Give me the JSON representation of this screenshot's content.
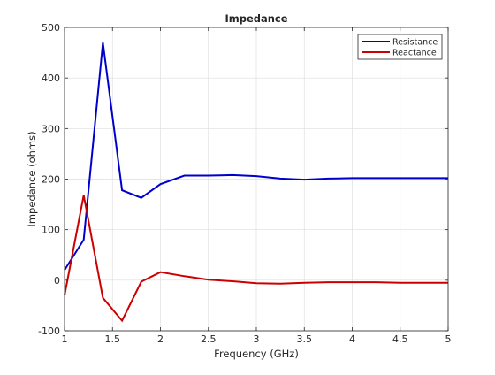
{
  "chart_data": {
    "type": "line",
    "title": "Impedance",
    "xlabel": "Frequency (GHz)",
    "ylabel": "Impedance (ohms)",
    "xlim": [
      1,
      5
    ],
    "ylim": [
      -100,
      500
    ],
    "xticks": [
      1,
      1.5,
      2,
      2.5,
      3,
      3.5,
      4,
      4.5,
      5
    ],
    "xtick_labels": [
      "1",
      "1.5",
      "2",
      "2.5",
      "3",
      "3.5",
      "4",
      "4.5",
      "5"
    ],
    "yticks": [
      -100,
      0,
      100,
      200,
      300,
      400,
      500
    ],
    "ytick_labels": [
      "-100",
      "0",
      "100",
      "200",
      "300",
      "400",
      "500"
    ],
    "grid": true,
    "legend_position": "top-right",
    "x": [
      1.0,
      1.2,
      1.4,
      1.6,
      1.8,
      2.0,
      2.25,
      2.5,
      2.75,
      3.0,
      3.25,
      3.5,
      3.75,
      4.0,
      4.25,
      4.5,
      4.75,
      5.0
    ],
    "series": [
      {
        "name": "Resistance",
        "color": "#0000cc",
        "values": [
          20,
          80,
          470,
          178,
          163,
          190,
          207,
          207,
          208,
          206,
          201,
          199,
          201,
          202,
          202,
          202,
          202,
          202
        ]
      },
      {
        "name": "Reactance",
        "color": "#cc0000",
        "values": [
          -30,
          168,
          -35,
          -80,
          -3,
          16,
          8,
          1,
          -2,
          -6,
          -7,
          -5,
          -4,
          -4,
          -4,
          -5,
          -5,
          -5
        ]
      }
    ]
  }
}
